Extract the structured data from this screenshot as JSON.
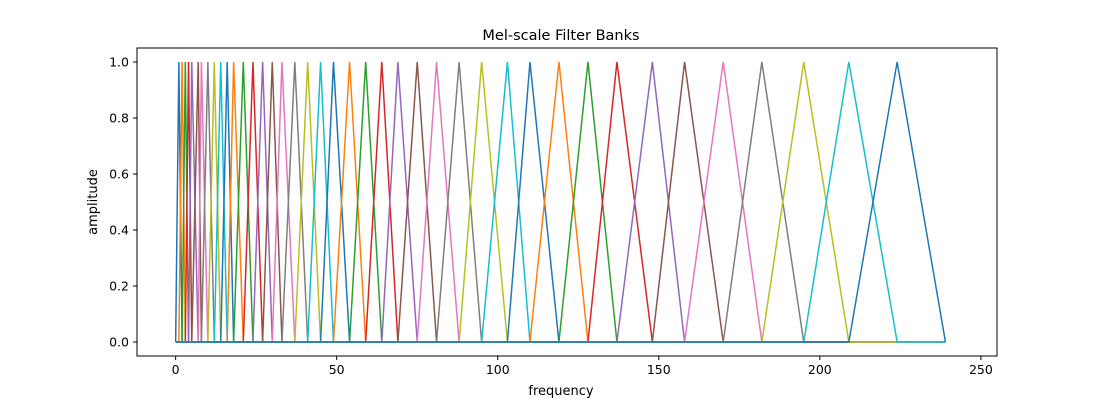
{
  "chart_data": {
    "type": "line",
    "title": "Mel-scale Filter Banks",
    "xlabel": "frequency",
    "ylabel": "amplitude",
    "xlim": [
      -12,
      255
    ],
    "ylim": [
      -0.05,
      1.05
    ],
    "xticks": [
      0,
      50,
      100,
      150,
      200,
      250
    ],
    "yticks": [
      0.0,
      0.2,
      0.4,
      0.6,
      0.8,
      1.0
    ],
    "xtick_labels": [
      "0",
      "50",
      "100",
      "150",
      "200",
      "250"
    ],
    "ytick_labels": [
      "0.0",
      "0.2",
      "0.4",
      "0.6",
      "0.8",
      "1.0"
    ],
    "grid": false,
    "legend": "none",
    "x_end": 239,
    "bin_edges": [
      0,
      1,
      2,
      3,
      4,
      5,
      7,
      8,
      10,
      12,
      14,
      16,
      18,
      21,
      24,
      27,
      30,
      33,
      37,
      41,
      45,
      49,
      54,
      59,
      64,
      69,
      75,
      81,
      88,
      95,
      103,
      110,
      119,
      128,
      137,
      148,
      158,
      170,
      182,
      195,
      209,
      224,
      239
    ],
    "colors": [
      "#1f77b4",
      "#ff7f0e",
      "#2ca02c",
      "#d62728",
      "#9467bd",
      "#8c564b",
      "#e377c2",
      "#7f7f7f",
      "#bcbd22",
      "#17becf"
    ]
  }
}
